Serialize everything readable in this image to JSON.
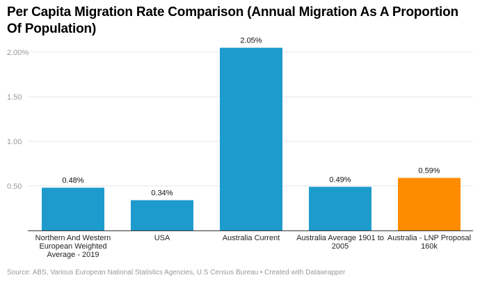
{
  "chart_data": {
    "type": "bar",
    "title": "Per Capita Migration Rate Comparison (Annual Migration As A Proportion Of Population)",
    "categories": [
      [
        "Northern And Western",
        "European Weighted",
        "Average - 2019"
      ],
      [
        "USA"
      ],
      [
        "Australia Current"
      ],
      [
        "Australia Average 1901 to",
        "2005"
      ],
      [
        "Australia - LNP Proposal",
        "160k"
      ]
    ],
    "values": [
      0.48,
      0.34,
      2.05,
      0.49,
      0.59
    ],
    "data_labels": [
      "0.48%",
      "0.34%",
      "2.05%",
      "0.49%",
      "0.59%"
    ],
    "colors": [
      "#1d9bcd",
      "#1d9bcd",
      "#1d9bcd",
      "#1d9bcd",
      "#ff8c00"
    ],
    "yticks": [
      0.5,
      1.0,
      1.5,
      2.0
    ],
    "ytick_labels": [
      "0.50",
      "1.00",
      "1.50",
      "2.00%"
    ],
    "ylim": [
      0,
      2.2
    ],
    "xlabel": "",
    "ylabel": "",
    "grid": true,
    "legend": "none"
  },
  "footer": {
    "source": "Source: ABS, Various European National Statistics Agencies, U.S Census Bureau • Created with Datawrapper"
  }
}
